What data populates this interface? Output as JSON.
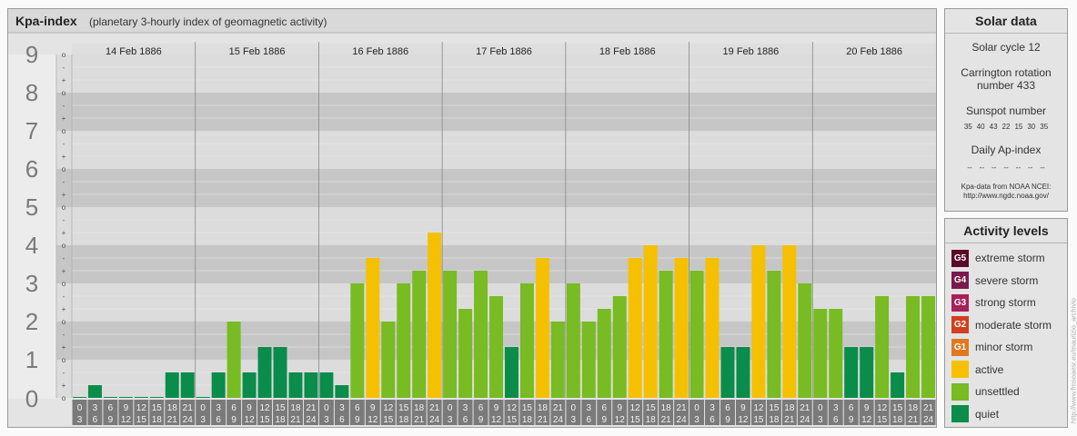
{
  "header": {
    "title": "Kpa-index",
    "subtitle": "(planetary 3-hourly index of geomagnetic activity)"
  },
  "chart_data": {
    "type": "bar",
    "ylim": [
      0,
      9
    ],
    "y_ticks": [
      "0",
      "1",
      "2",
      "3",
      "4",
      "5",
      "6",
      "7",
      "8",
      "9"
    ],
    "minor_ticks": [
      "o",
      "+",
      "-"
    ],
    "days": [
      "14 Feb 1886",
      "15 Feb 1886",
      "16 Feb 1886",
      "17 Feb 1886",
      "18 Feb 1886",
      "19 Feb 1886",
      "20 Feb 1886"
    ],
    "interval_start": [
      "0",
      "3",
      "6",
      "9",
      "12",
      "15",
      "18",
      "21"
    ],
    "interval_end": [
      "3",
      "6",
      "9",
      "12",
      "15",
      "18",
      "21",
      "24"
    ],
    "values": [
      0.0,
      0.333,
      0.0,
      0.0,
      0.0,
      0.0,
      0.667,
      0.667,
      0.0,
      0.667,
      2.0,
      0.667,
      1.333,
      1.333,
      0.667,
      0.667,
      0.667,
      0.333,
      3.0,
      3.667,
      2.0,
      3.0,
      3.333,
      4.333,
      3.333,
      2.333,
      3.333,
      2.667,
      1.333,
      3.0,
      3.667,
      2.0,
      3.0,
      2.0,
      2.333,
      2.667,
      3.667,
      4.0,
      3.333,
      3.667,
      3.333,
      3.667,
      1.333,
      1.333,
      4.0,
      3.333,
      4.0,
      3.0,
      2.333,
      2.333,
      1.333,
      1.333,
      2.667,
      0.667,
      2.667,
      2.667
    ],
    "levels": [
      "quiet",
      "quiet",
      "quiet",
      "quiet",
      "quiet",
      "quiet",
      "quiet",
      "quiet",
      "quiet",
      "quiet",
      "unsettled",
      "quiet",
      "quiet",
      "quiet",
      "quiet",
      "quiet",
      "quiet",
      "quiet",
      "unsettled",
      "active",
      "unsettled",
      "unsettled",
      "unsettled",
      "active",
      "unsettled",
      "unsettled",
      "unsettled",
      "unsettled",
      "quiet",
      "unsettled",
      "active",
      "unsettled",
      "unsettled",
      "unsettled",
      "unsettled",
      "unsettled",
      "active",
      "active",
      "unsettled",
      "active",
      "unsettled",
      "active",
      "quiet",
      "quiet",
      "active",
      "unsettled",
      "active",
      "unsettled",
      "unsettled",
      "unsettled",
      "quiet",
      "quiet",
      "unsettled",
      "quiet",
      "unsettled",
      "unsettled"
    ]
  },
  "solar": {
    "title": "Solar data",
    "cycle": "Solar cycle 12",
    "carrington_line1": "Carrington rotation",
    "carrington_line2": "number 433",
    "sunspot_label": "Sunspot number",
    "sunspots": [
      "35",
      "40",
      "43",
      "22",
      "15",
      "30",
      "35"
    ],
    "ap_label": "Daily Ap-index",
    "ap_values": [
      "--",
      "--",
      "--",
      "--",
      "--",
      "--",
      "--"
    ],
    "source_line1": "Kpa-data from NOAA NCEI:",
    "source_line2": "http://www.ngdc.noaa.gov/"
  },
  "activity": {
    "title": "Activity levels",
    "items": [
      {
        "code": "G5",
        "label": "extreme storm",
        "color": "#5a0a28"
      },
      {
        "code": "G4",
        "label": "severe storm",
        "color": "#7a1a4a"
      },
      {
        "code": "G3",
        "label": "strong storm",
        "color": "#a8205a"
      },
      {
        "code": "G2",
        "label": "moderate storm",
        "color": "#d04020"
      },
      {
        "code": "G1",
        "label": "minor storm",
        "color": "#e07a20"
      },
      {
        "code": "",
        "label": "active",
        "color": "#f5c000"
      },
      {
        "code": "",
        "label": "unsettled",
        "color": "#78bb22"
      },
      {
        "code": "",
        "label": "quiet",
        "color": "#0a8c4a"
      }
    ]
  },
  "colors": {
    "quiet": "#0a8c4a",
    "unsettled": "#78bb22",
    "active": "#f5c000"
  },
  "watermark": "http://www.fmsoaesr.eu/maurizio_archivio"
}
